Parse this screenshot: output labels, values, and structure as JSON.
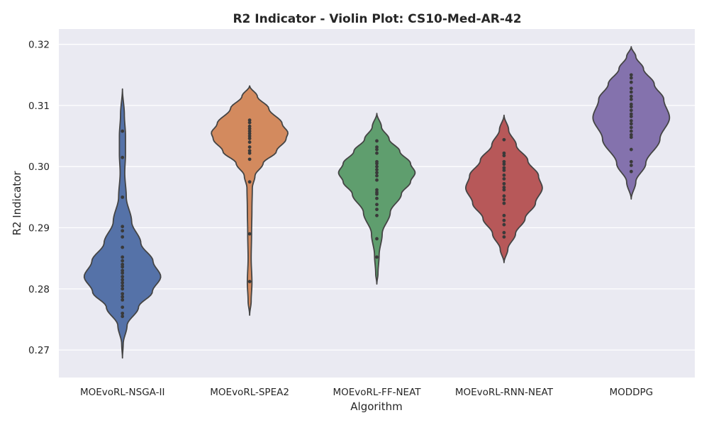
{
  "chart_data": {
    "type": "violin",
    "title": "R2 Indicator - Violin Plot: CS10-Med-AR-42",
    "xlabel": "Algorithm",
    "ylabel": "R2 Indicator",
    "ylim": [
      0.2655,
      0.3225
    ],
    "yticks": [
      0.27,
      0.28,
      0.29,
      0.3,
      0.31,
      0.32
    ],
    "ytick_labels": [
      "0.27",
      "0.28",
      "0.29",
      "0.30",
      "0.31",
      "0.32"
    ],
    "grid": true,
    "background": "#eaeaf2",
    "gridline_color": "#ffffff",
    "outline_color": "#444444",
    "point_color": "#3a3a3a",
    "categories": [
      "MOEvoRL-NSGA-II",
      "MOEvoRL-SPEA2",
      "MOEvoRL-FF-NEAT",
      "MOEvoRL-RNN-NEAT",
      "MODDPG"
    ],
    "series": [
      {
        "color": "#5572a8",
        "range": [
          0.2687,
          0.3127
        ],
        "profile": [
          [
            0.2687,
            0.0
          ],
          [
            0.271,
            0.02
          ],
          [
            0.274,
            0.12
          ],
          [
            0.277,
            0.42
          ],
          [
            0.2795,
            0.78
          ],
          [
            0.282,
            1.0
          ],
          [
            0.2845,
            0.8
          ],
          [
            0.2875,
            0.48
          ],
          [
            0.291,
            0.24
          ],
          [
            0.295,
            0.1
          ],
          [
            0.299,
            0.06
          ],
          [
            0.302,
            0.08
          ],
          [
            0.305,
            0.08
          ],
          [
            0.3085,
            0.05
          ],
          [
            0.3127,
            0.0
          ]
        ],
        "values": [
          0.3058,
          0.3015,
          0.295,
          0.2902,
          0.2895,
          0.2885,
          0.2868,
          0.2852,
          0.2846,
          0.284,
          0.2836,
          0.283,
          0.2826,
          0.282,
          0.2815,
          0.281,
          0.2805,
          0.28,
          0.2792,
          0.2787,
          0.2782,
          0.277,
          0.276,
          0.2755
        ]
      },
      {
        "color": "#d38a5e",
        "range": [
          0.2757,
          0.3132
        ],
        "profile": [
          [
            0.2757,
            0.0
          ],
          [
            0.278,
            0.04
          ],
          [
            0.281,
            0.06
          ],
          [
            0.285,
            0.04
          ],
          [
            0.289,
            0.05
          ],
          [
            0.293,
            0.06
          ],
          [
            0.2965,
            0.07
          ],
          [
            0.2985,
            0.14
          ],
          [
            0.3005,
            0.35
          ],
          [
            0.3025,
            0.7
          ],
          [
            0.3045,
            0.95
          ],
          [
            0.3055,
            1.0
          ],
          [
            0.307,
            0.85
          ],
          [
            0.3095,
            0.5
          ],
          [
            0.3115,
            0.2
          ],
          [
            0.3132,
            0.0
          ]
        ],
        "values": [
          0.3076,
          0.3072,
          0.3066,
          0.3062,
          0.3058,
          0.3054,
          0.305,
          0.3046,
          0.304,
          0.3032,
          0.3026,
          0.3022,
          0.3012,
          0.2975,
          0.289,
          0.2812
        ]
      },
      {
        "color": "#5f9e6e",
        "range": [
          0.2808,
          0.3087
        ],
        "profile": [
          [
            0.2808,
            0.0
          ],
          [
            0.2825,
            0.03
          ],
          [
            0.2855,
            0.06
          ],
          [
            0.289,
            0.14
          ],
          [
            0.2925,
            0.35
          ],
          [
            0.2955,
            0.64
          ],
          [
            0.2975,
            0.88
          ],
          [
            0.299,
            1.0
          ],
          [
            0.3005,
            0.88
          ],
          [
            0.3025,
            0.6
          ],
          [
            0.3045,
            0.32
          ],
          [
            0.3065,
            0.12
          ],
          [
            0.3087,
            0.0
          ]
        ],
        "values": [
          0.3042,
          0.3032,
          0.3028,
          0.3022,
          0.3008,
          0.3005,
          0.3,
          0.2995,
          0.299,
          0.2985,
          0.2978,
          0.2962,
          0.2958,
          0.2955,
          0.2948,
          0.2938,
          0.293,
          0.292,
          0.2882,
          0.2852
        ]
      },
      {
        "color": "#b75859",
        "range": [
          0.2843,
          0.3084
        ],
        "profile": [
          [
            0.2843,
            0.0
          ],
          [
            0.2865,
            0.1
          ],
          [
            0.289,
            0.3
          ],
          [
            0.2915,
            0.55
          ],
          [
            0.294,
            0.82
          ],
          [
            0.2965,
            1.0
          ],
          [
            0.2985,
            0.9
          ],
          [
            0.301,
            0.62
          ],
          [
            0.3035,
            0.32
          ],
          [
            0.306,
            0.12
          ],
          [
            0.3084,
            0.0
          ]
        ],
        "values": [
          0.3044,
          0.3022,
          0.3018,
          0.3008,
          0.3004,
          0.2998,
          0.2994,
          0.2986,
          0.298,
          0.2972,
          0.2966,
          0.2962,
          0.2952,
          0.2946,
          0.294,
          0.292,
          0.2912,
          0.2905,
          0.2892,
          0.2885
        ]
      },
      {
        "color": "#8472ad",
        "range": [
          0.2947,
          0.3196
        ],
        "profile": [
          [
            0.2947,
            0.0
          ],
          [
            0.2975,
            0.12
          ],
          [
            0.3005,
            0.38
          ],
          [
            0.3045,
            0.75
          ],
          [
            0.308,
            1.0
          ],
          [
            0.311,
            0.85
          ],
          [
            0.3135,
            0.6
          ],
          [
            0.316,
            0.32
          ],
          [
            0.318,
            0.12
          ],
          [
            0.3196,
            0.0
          ]
        ],
        "values": [
          0.315,
          0.3145,
          0.3138,
          0.3128,
          0.3122,
          0.3115,
          0.311,
          0.3102,
          0.3098,
          0.3092,
          0.3086,
          0.3082,
          0.3075,
          0.307,
          0.3064,
          0.3058,
          0.3052,
          0.3048,
          0.3028,
          0.3008,
          0.3002,
          0.2992
        ]
      }
    ]
  }
}
